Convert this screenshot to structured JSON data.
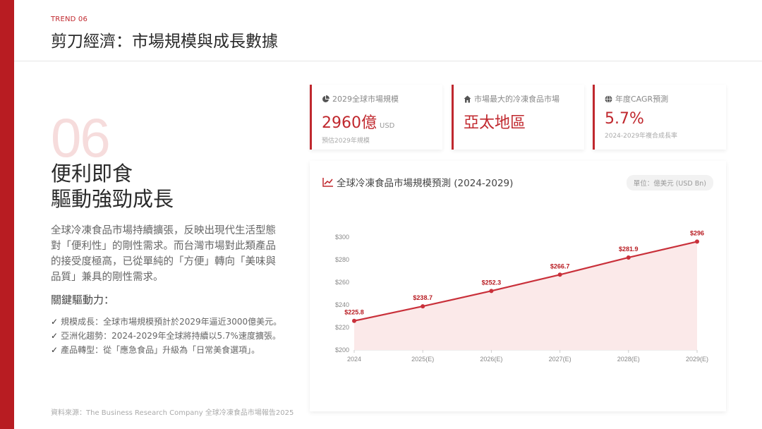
{
  "header": {
    "trend_label": "TREND 06",
    "title": "剪刀經濟：市場規模與成長數據"
  },
  "section": {
    "number": "06",
    "headline_line1": "便利即食",
    "headline_line2": "驅動強勁成長",
    "body": "全球冷凍食品市場持續擴張，反映出現代生活型態對「便利性」的剛性需求。而台灣市場對此類產品的接受度極高，已從單純的「方便」轉向「美味與品質」兼具的剛性需求。",
    "drivers_title": "關鍵驅動力：",
    "drivers": [
      "規模成長：全球市場規模預計於2029年逼近3000億美元。",
      "亞洲化趨勢：2024-2029年全球將持續以5.7%速度擴張。",
      "產品轉型：從「應急食品」升級為「日常美食選項」。"
    ],
    "check_glyph": "✓",
    "source": "資料來源：The Business Research Company 全球冷凍食品市場報告2025"
  },
  "kpis": [
    {
      "icon": "pie-chart-icon",
      "label": "2029全球市場規模",
      "value": "2960億",
      "unit": "USD",
      "note": "預估2029年規模"
    },
    {
      "icon": "home-icon",
      "label": "市場最大的冷凍食品市場",
      "value": "亞太地區",
      "unit": "",
      "note": ""
    },
    {
      "icon": "globe-icon",
      "label": "年度CAGR預測",
      "value": "5.7%",
      "unit": "",
      "note": "2024-2029年複合成長率"
    }
  ],
  "chart_title": "全球冷凍食品市場規模預測 (2024-2029)",
  "unit_badge": "單位：億美元 (USD Bn)",
  "colors": {
    "accent": "#c0282e",
    "line": "#c9303a",
    "fill": "#fbe9e9"
  },
  "chart_data": {
    "type": "area",
    "categories": [
      "2024",
      "2025(E)",
      "2026(E)",
      "2027(E)",
      "2028(E)",
      "2029(E)"
    ],
    "values": [
      225.8,
      238.7,
      252.3,
      266.7,
      281.9,
      296
    ],
    "labels": [
      "$225.8",
      "$238.7",
      "$252.3",
      "$266.7",
      "$281.9",
      "$296"
    ],
    "ylim": [
      200,
      300
    ],
    "yticks": [
      200,
      220,
      240,
      260,
      280,
      300
    ],
    "ytick_labels": [
      "$200",
      "$220",
      "$240",
      "$260",
      "$280",
      "$300"
    ],
    "grid": false
  }
}
